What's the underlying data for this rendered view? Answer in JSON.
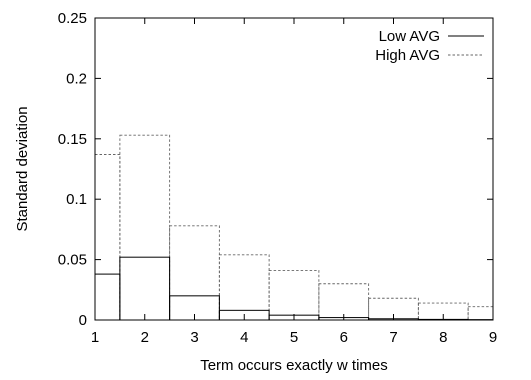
{
  "chart_data": {
    "type": "bar",
    "xlabel": "Term occurs exactly w times",
    "ylabel": "Standard deviation",
    "xlim": [
      1,
      9
    ],
    "ylim": [
      0,
      0.25
    ],
    "x_ticks": [
      "1",
      "2",
      "3",
      "4",
      "5",
      "6",
      "7",
      "8",
      "9"
    ],
    "y_ticks": [
      "0",
      "0.05",
      "0.1",
      "0.15",
      "0.2",
      "0.25"
    ],
    "legend_position": "top-right",
    "grid": false,
    "bin_edges": [
      1,
      1.5,
      2.5,
      3.5,
      4.5,
      5.5,
      6.5,
      7.5,
      8.5,
      9
    ],
    "series": [
      {
        "name": "Low AVG",
        "line_style": "solid",
        "values": [
          0.038,
          0.052,
          0.02,
          0.008,
          0.004,
          0.002,
          0.001,
          0.0005,
          0.0003
        ]
      },
      {
        "name": "High AVG",
        "line_style": "dashed",
        "values": [
          0.137,
          0.153,
          0.078,
          0.054,
          0.041,
          0.03,
          0.018,
          0.014,
          0.011
        ]
      }
    ]
  }
}
